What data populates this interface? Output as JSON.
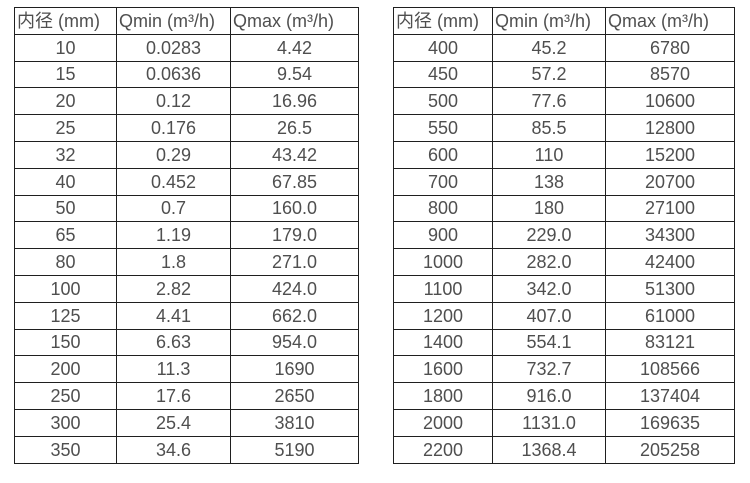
{
  "page": {
    "background_color": "#ffffff",
    "text_color": "#4f4f4f",
    "border_color": "#1f1f1f"
  },
  "table_left": {
    "headers": [
      "内径 (mm)",
      "Qmin (m³/h)",
      "Qmax (m³/h)"
    ],
    "rows": [
      [
        "10",
        "0.0283",
        "4.42"
      ],
      [
        "15",
        "0.0636",
        "9.54"
      ],
      [
        "20",
        "0.12",
        "16.96"
      ],
      [
        "25",
        "0.176",
        "26.5"
      ],
      [
        "32",
        "0.29",
        "43.42"
      ],
      [
        "40",
        "0.452",
        "67.85"
      ],
      [
        "50",
        "0.7",
        "160.0"
      ],
      [
        "65",
        "1.19",
        "179.0"
      ],
      [
        "80",
        "1.8",
        "271.0"
      ],
      [
        "100",
        "2.82",
        "424.0"
      ],
      [
        "125",
        "4.41",
        "662.0"
      ],
      [
        "150",
        "6.63",
        "954.0"
      ],
      [
        "200",
        "11.3",
        "1690"
      ],
      [
        "250",
        "17.6",
        "2650"
      ],
      [
        "300",
        "25.4",
        "3810"
      ],
      [
        "350",
        "34.6",
        "5190"
      ]
    ]
  },
  "table_right": {
    "headers": [
      "内径 (mm)",
      "Qmin (m³/h)",
      "Qmax (m³/h)"
    ],
    "rows": [
      [
        "400",
        "45.2",
        "6780"
      ],
      [
        "450",
        "57.2",
        "8570"
      ],
      [
        "500",
        "77.6",
        "10600"
      ],
      [
        "550",
        "85.5",
        "12800"
      ],
      [
        "600",
        "110",
        "15200"
      ],
      [
        "700",
        "138",
        "20700"
      ],
      [
        "800",
        "180",
        "27100"
      ],
      [
        "900",
        "229.0",
        "34300"
      ],
      [
        "1000",
        "282.0",
        "42400"
      ],
      [
        "1100",
        "342.0",
        "51300"
      ],
      [
        "1200",
        "407.0",
        "61000"
      ],
      [
        "1400",
        "554.1",
        "83121"
      ],
      [
        "1600",
        "732.7",
        "108566"
      ],
      [
        "1800",
        "916.0",
        "137404"
      ],
      [
        "2000",
        "1131.0",
        "169635"
      ],
      [
        "2200",
        "1368.4",
        "205258"
      ]
    ]
  }
}
